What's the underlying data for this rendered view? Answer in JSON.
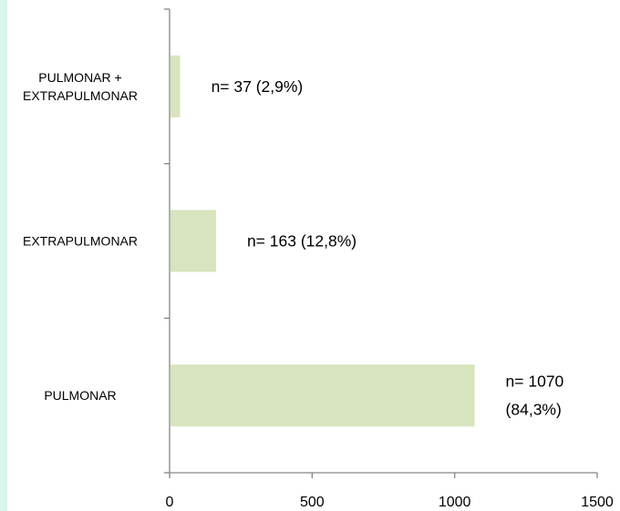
{
  "chart_data": {
    "type": "bar",
    "orientation": "horizontal",
    "title": "",
    "xlabel": "",
    "ylabel": "",
    "categories": [
      "PULMONAR + EXTRAPULMONAR",
      "EXTRAPULMONAR",
      "PULMONAR"
    ],
    "category_lines": [
      [
        "PULMONAR +",
        "EXTRAPULMONAR"
      ],
      [
        "EXTRAPULMONAR"
      ],
      [
        "PULMONAR"
      ]
    ],
    "values": [
      37,
      163,
      1070
    ],
    "data_labels": [
      [
        "n= 37 (2,9%)"
      ],
      [
        "n= 163 (12,8%)"
      ],
      [
        "n= 1070",
        "(84,3%)"
      ]
    ],
    "xlim": [
      0,
      1500
    ],
    "x_ticks": [
      0,
      500,
      1000,
      1500
    ],
    "x_tick_labels": [
      "0",
      "500",
      "1000",
      "1500"
    ],
    "grid": false,
    "legend": "none",
    "colors": {
      "bar": "#d7e4bd",
      "axis": "#868686",
      "accent": "#d9f5ee"
    }
  }
}
